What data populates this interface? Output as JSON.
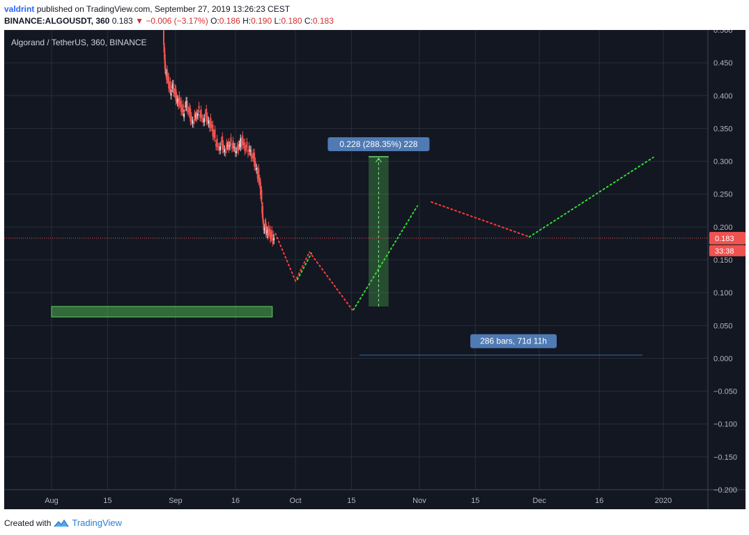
{
  "header": {
    "author": "valdrint",
    "published_text": "published on TradingView.com, September 27, 2019 13:26:23 CEST",
    "symbol": "BINANCE:ALGOUSDT, 360",
    "last": "0.183",
    "change": "−0.006 (−3.17%)",
    "o_label": "O:",
    "o_value": "0.186",
    "h_label": "H:",
    "h_value": "0.190",
    "l_label": "L:",
    "l_value": "0.180",
    "c_label": "C:",
    "c_value": "0.183"
  },
  "footer": {
    "created_with": "Created with",
    "brand": "TradingView"
  },
  "colors": {
    "background": "#131722",
    "grid": "#2a2e39",
    "up": "#d9e3ea",
    "down": "#ef5350",
    "price_line": "#ef5350",
    "zone_green": "#4caf50",
    "path_red": "#ff3b3b",
    "path_green": "#33dd33",
    "label_blue": "#4f7ab3",
    "range_line": "#2f6e9e"
  },
  "chart_data": {
    "type": "candlestick",
    "title": "Algorand / TetherUS, 360, BINANCE",
    "ylim": [
      -0.2,
      0.5
    ],
    "y_ticks": [
      "0.500",
      "0.450",
      "0.400",
      "0.350",
      "0.300",
      "0.250",
      "0.200",
      "0.150",
      "0.100",
      "0.050",
      "0.000",
      "−0.050",
      "−0.100",
      "−0.150",
      "−0.200"
    ],
    "y_tick_values": [
      0.5,
      0.45,
      0.4,
      0.35,
      0.3,
      0.25,
      0.2,
      0.15,
      0.1,
      0.05,
      0,
      -0.05,
      -0.1,
      -0.15,
      -0.2
    ],
    "x_range_day": [
      -8,
      59
    ],
    "x_ticks": [
      {
        "label": "Aug",
        "day": 0
      },
      {
        "label": "15",
        "day": 14
      },
      {
        "label": "Sep",
        "day": 31
      },
      {
        "label": "16",
        "day": 46
      },
      {
        "label": "Oct",
        "day": 61
      },
      {
        "label": "15",
        "day": 75
      },
      {
        "label": "Nov",
        "day": 92
      },
      {
        "label": "15",
        "day": 106
      },
      {
        "label": "Dec",
        "day": 122
      },
      {
        "label": "16",
        "day": 137
      },
      {
        "label": "2020",
        "day": 153
      }
    ],
    "price_series": [
      {
        "day": 28.0,
        "value": 0.5
      },
      {
        "day": 28.3,
        "value": 0.455
      },
      {
        "day": 28.7,
        "value": 0.435
      },
      {
        "day": 29.2,
        "value": 0.425
      },
      {
        "day": 29.8,
        "value": 0.408
      },
      {
        "day": 30.4,
        "value": 0.418
      },
      {
        "day": 31.0,
        "value": 0.402
      },
      {
        "day": 31.6,
        "value": 0.395
      },
      {
        "day": 32.3,
        "value": 0.388
      },
      {
        "day": 33.0,
        "value": 0.375
      },
      {
        "day": 33.8,
        "value": 0.392
      },
      {
        "day": 34.6,
        "value": 0.372
      },
      {
        "day": 35.4,
        "value": 0.362
      },
      {
        "day": 36.2,
        "value": 0.37
      },
      {
        "day": 37.0,
        "value": 0.38
      },
      {
        "day": 37.8,
        "value": 0.365
      },
      {
        "day": 38.6,
        "value": 0.372
      },
      {
        "day": 39.4,
        "value": 0.362
      },
      {
        "day": 40.2,
        "value": 0.352
      },
      {
        "day": 41.0,
        "value": 0.335
      },
      {
        "day": 41.8,
        "value": 0.322
      },
      {
        "day": 42.6,
        "value": 0.33
      },
      {
        "day": 43.4,
        "value": 0.318
      },
      {
        "day": 44.2,
        "value": 0.325
      },
      {
        "day": 45.0,
        "value": 0.33
      },
      {
        "day": 45.8,
        "value": 0.322
      },
      {
        "day": 46.6,
        "value": 0.318
      },
      {
        "day": 47.4,
        "value": 0.335
      },
      {
        "day": 48.2,
        "value": 0.325
      },
      {
        "day": 49.0,
        "value": 0.32
      },
      {
        "day": 49.8,
        "value": 0.318
      },
      {
        "day": 50.6,
        "value": 0.305
      },
      {
        "day": 51.4,
        "value": 0.29
      },
      {
        "day": 52.2,
        "value": 0.265
      },
      {
        "day": 52.6,
        "value": 0.24
      },
      {
        "day": 53.0,
        "value": 0.205
      },
      {
        "day": 53.5,
        "value": 0.2
      },
      {
        "day": 54.0,
        "value": 0.195
      },
      {
        "day": 54.6,
        "value": 0.192
      },
      {
        "day": 55.2,
        "value": 0.185
      },
      {
        "day": 55.7,
        "value": 0.183
      }
    ],
    "last_price": 0.183,
    "last_price_label": "0.183",
    "countdown_label": "33:38",
    "support_zone": {
      "day_start": 0,
      "day_end": 55.2,
      "price_low": 0.063,
      "price_high": 0.079
    },
    "projection_red": [
      {
        "day": 56.0,
        "value": 0.19
      },
      {
        "day": 61.0,
        "value": 0.118
      },
      {
        "day": 64.5,
        "value": 0.162
      }
    ],
    "projection_red_2": [
      {
        "day": 64.5,
        "value": 0.162
      },
      {
        "day": 75.2,
        "value": 0.074
      }
    ],
    "projection_green_1": [
      {
        "day": 61.5,
        "value": 0.12
      },
      {
        "day": 65.0,
        "value": 0.16
      }
    ],
    "projection_green_2": [
      {
        "day": 75.5,
        "value": 0.074
      },
      {
        "day": 91.5,
        "value": 0.232
      }
    ],
    "projection_red_3": [
      {
        "day": 95.0,
        "value": 0.238
      },
      {
        "day": 119.5,
        "value": 0.185
      }
    ],
    "projection_green_3": [
      {
        "day": 119.5,
        "value": 0.185
      },
      {
        "day": 150.5,
        "value": 0.306
      }
    ],
    "measure": {
      "day_start": 79.3,
      "day_end": 84.3,
      "price_low": 0.079,
      "price_high": 0.307,
      "label": "0.228 (288.35%) 228"
    },
    "range": {
      "day_start": 77.0,
      "day_end": 147.8,
      "price": 0.005,
      "label": "286 bars, 71d 11h"
    }
  }
}
